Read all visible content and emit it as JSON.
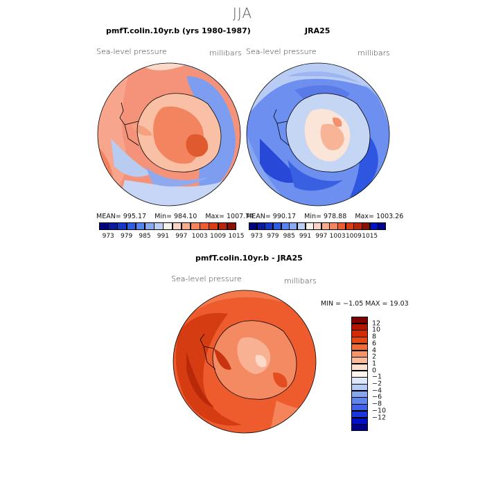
{
  "title": "JJA",
  "colors": {
    "cb1": [
      "#00007e",
      "#0a1aa0",
      "#1537c8",
      "#2a5ee8",
      "#5584f4",
      "#88aaf0",
      "#bcd0f5",
      "#f6f1ea",
      "#fcd3c4",
      "#f9ab8e",
      "#f5855e",
      "#ef5c32",
      "#db3d12",
      "#b8250a",
      "#8a1003"
    ],
    "cb2": [
      "#800000",
      "#b21400",
      "#d42a05",
      "#ea4812",
      "#f26c35",
      "#f79368",
      "#fbbb9d",
      "#fde0d0",
      "#fff5ee",
      "#dde8fb",
      "#b4cbf5",
      "#87a8f1",
      "#5f86ec",
      "#3f62e6",
      "#1b34dc",
      "#0010c6",
      "#00008a"
    ]
  },
  "chart_data": [
    {
      "type": "heatmap",
      "title": "pmfT.colin.10yr.b (yrs 1980-1987)",
      "variable": "Sea-level pressure",
      "units": "millibars",
      "stats": {
        "mean": "995.17",
        "min": "984.10",
        "max": "1007.74"
      },
      "colorbar_ticks": [
        "973",
        "979",
        "985",
        "991",
        "997",
        "1003",
        "1009",
        "1015"
      ]
    },
    {
      "type": "heatmap",
      "title": "JRA25",
      "variable": "Sea-level pressure",
      "units": "millibars",
      "stats": {
        "mean": "990.17",
        "min": "978.88",
        "max": "1003.26"
      },
      "colorbar_ticks": [
        "973",
        "979",
        "985",
        "991",
        "997",
        "1003",
        "1009",
        "1015"
      ]
    },
    {
      "type": "heatmap",
      "title": "pmfT.colin.10yr.b - JRA25",
      "variable": "Sea-level pressure",
      "units": "millibars",
      "stats": {
        "min": "−1.05",
        "max": "19.03"
      },
      "colorbar_ticks": [
        "12",
        "10",
        "8",
        "6",
        "4",
        "2",
        "1",
        "0",
        "−1",
        "−2",
        "−4",
        "−6",
        "−8",
        "−10",
        "−12"
      ]
    }
  ],
  "labels": {
    "mean": "MEAN=",
    "min": "Min=",
    "max": "Max=",
    "diff_min": "MIN =",
    "diff_max": "MAX ="
  }
}
